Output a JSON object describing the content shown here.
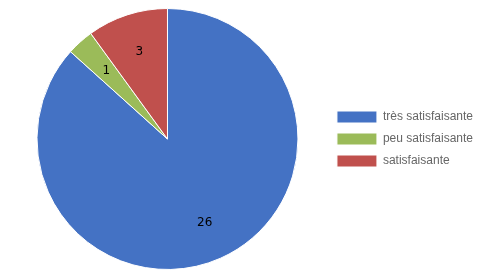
{
  "chart_data": {
    "type": "pie",
    "categories": [
      "très satisfaisante",
      "peu satisfaisante",
      "satisfaisante"
    ],
    "values": [
      26,
      1,
      3
    ],
    "colors": [
      "#4472C4",
      "#9BBB59",
      "#C0504D"
    ],
    "legend": "right",
    "data_labels": true
  }
}
